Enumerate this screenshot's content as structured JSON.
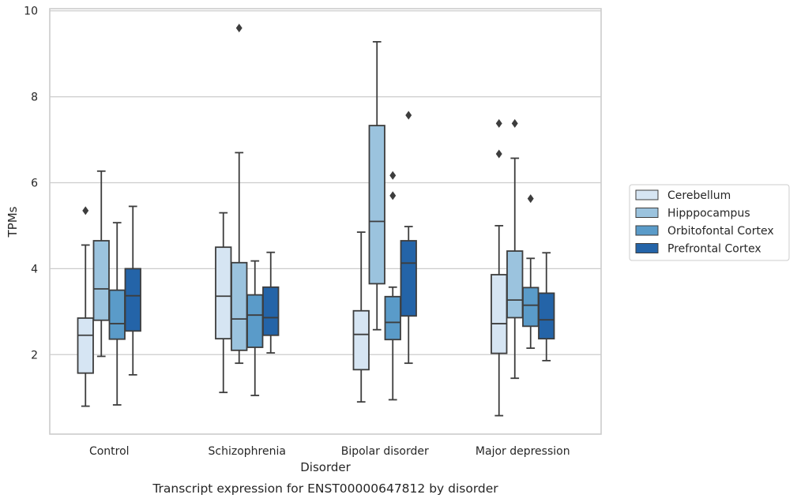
{
  "chart_data": {
    "type": "box",
    "title": "",
    "caption": "Transcript expression for ENST00000647812 by disorder",
    "xlabel": "Disorder",
    "ylabel": "TPMs",
    "ylim": [
      0.15,
      10.05
    ],
    "yticks": [
      2,
      4,
      6,
      8,
      10
    ],
    "grid": "horizontal",
    "legend_position": "right",
    "categories": [
      "Control",
      "Schizophrenia",
      "Bipolar disorder",
      "Major depression"
    ],
    "series": [
      {
        "name": "Cerebellum",
        "color": "#d6e5f3",
        "boxes": [
          {
            "whislo": 0.8,
            "q1": 1.57,
            "med": 2.45,
            "q3": 2.85,
            "whishi": 4.55,
            "fliers": [
              5.35
            ]
          },
          {
            "whislo": 1.12,
            "q1": 2.37,
            "med": 3.36,
            "q3": 4.5,
            "whishi": 5.3,
            "fliers": []
          },
          {
            "whislo": 0.9,
            "q1": 1.65,
            "med": 2.47,
            "q3": 3.02,
            "whishi": 4.85,
            "fliers": []
          },
          {
            "whislo": 0.58,
            "q1": 2.03,
            "med": 2.72,
            "q3": 3.86,
            "whishi": 5.0,
            "fliers": [
              6.67,
              7.38
            ]
          }
        ]
      },
      {
        "name": "Hipppocampus",
        "color": "#9bc3de",
        "boxes": [
          {
            "whislo": 1.96,
            "q1": 2.8,
            "med": 3.53,
            "q3": 4.65,
            "whishi": 6.27,
            "fliers": []
          },
          {
            "whislo": 1.8,
            "q1": 2.1,
            "med": 2.83,
            "q3": 4.14,
            "whishi": 6.7,
            "fliers": [
              9.6
            ]
          },
          {
            "whislo": 2.58,
            "q1": 3.65,
            "med": 5.1,
            "q3": 7.33,
            "whishi": 9.28,
            "fliers": []
          },
          {
            "whislo": 1.45,
            "q1": 2.86,
            "med": 3.27,
            "q3": 4.41,
            "whishi": 6.57,
            "fliers": [
              7.38
            ]
          }
        ]
      },
      {
        "name": "Orbitofontal Cortex",
        "color": "#5a9bc9",
        "boxes": [
          {
            "whislo": 0.83,
            "q1": 2.36,
            "med": 2.72,
            "q3": 3.5,
            "whishi": 5.07,
            "fliers": []
          },
          {
            "whislo": 1.05,
            "q1": 2.17,
            "med": 2.92,
            "q3": 3.39,
            "whishi": 4.18,
            "fliers": []
          },
          {
            "whislo": 0.95,
            "q1": 2.35,
            "med": 2.75,
            "q3": 3.35,
            "whishi": 3.57,
            "fliers": [
              5.7,
              6.17
            ]
          },
          {
            "whislo": 2.15,
            "q1": 2.66,
            "med": 3.15,
            "q3": 3.56,
            "whishi": 4.24,
            "fliers": [
              5.63
            ]
          }
        ]
      },
      {
        "name": "Prefrontal Cortex",
        "color": "#2464a8",
        "boxes": [
          {
            "whislo": 1.53,
            "q1": 2.55,
            "med": 3.37,
            "q3": 4.0,
            "whishi": 5.45,
            "fliers": []
          },
          {
            "whislo": 2.04,
            "q1": 2.45,
            "med": 2.86,
            "q3": 3.57,
            "whishi": 4.38,
            "fliers": []
          },
          {
            "whislo": 1.8,
            "q1": 2.9,
            "med": 4.13,
            "q3": 4.65,
            "whishi": 4.98,
            "fliers": [
              7.57
            ]
          },
          {
            "whislo": 1.86,
            "q1": 2.37,
            "med": 2.81,
            "q3": 3.43,
            "whishi": 4.37,
            "fliers": []
          }
        ]
      }
    ]
  }
}
